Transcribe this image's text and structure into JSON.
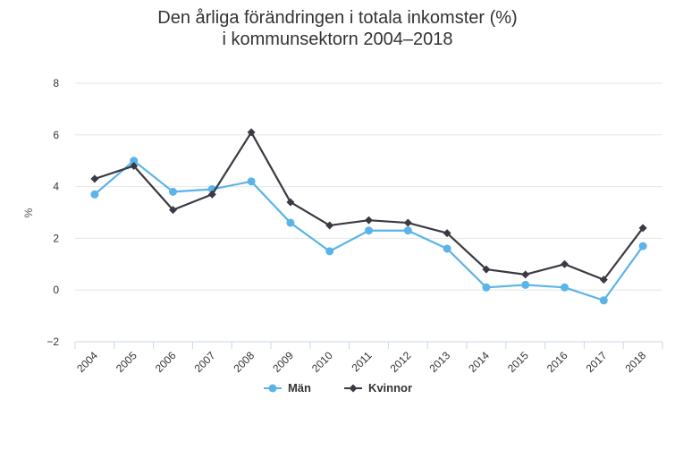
{
  "chart_data": {
    "type": "line",
    "title": "Den årliga förändringen i totala inkomster (%)",
    "subtitle": "i kommunsektorn 2004–2018",
    "xlabel": "",
    "ylabel": "%",
    "ylim": [
      -2,
      8
    ],
    "yticks": [
      -2,
      0,
      2,
      4,
      6,
      8
    ],
    "grid": true,
    "legend_position": "bottom-center",
    "categories": [
      "2004",
      "2005",
      "2006",
      "2007",
      "2008",
      "2009",
      "2010",
      "2011",
      "2012",
      "2013",
      "2014",
      "2015",
      "2016",
      "2017",
      "2018"
    ],
    "series": [
      {
        "name": "Män",
        "color": "#5ab4e8",
        "marker": "circle",
        "values": [
          3.7,
          5.0,
          3.8,
          3.9,
          4.2,
          2.6,
          1.5,
          2.3,
          2.3,
          1.6,
          0.1,
          0.2,
          0.1,
          -0.4,
          1.7
        ]
      },
      {
        "name": "Kvinnor",
        "color": "#3a3a44",
        "marker": "diamond",
        "values": [
          4.3,
          4.8,
          3.1,
          3.7,
          6.1,
          3.4,
          2.5,
          2.7,
          2.6,
          2.2,
          0.8,
          0.6,
          1.0,
          0.4,
          2.4
        ]
      }
    ]
  }
}
